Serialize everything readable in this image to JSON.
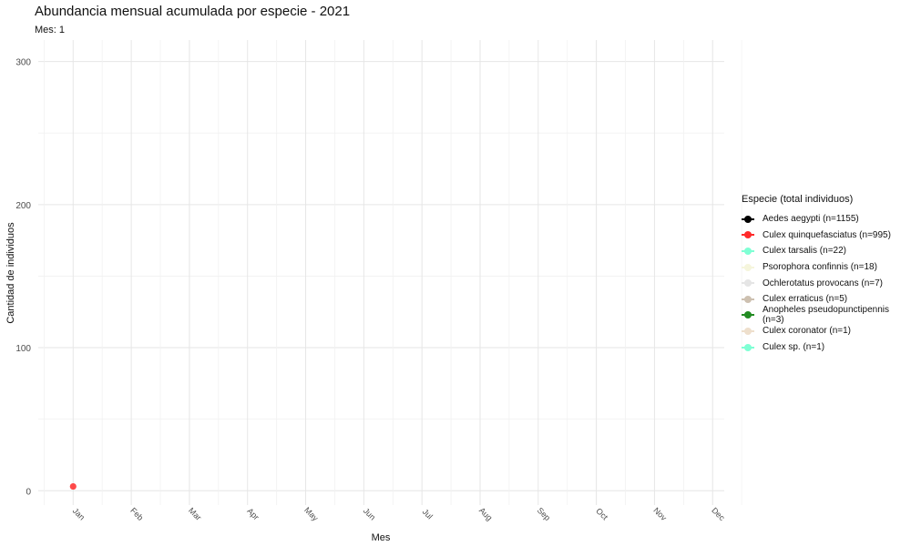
{
  "chart_data": {
    "type": "line",
    "title": "Abundancia mensual acumulada por especie - 2021",
    "subtitle": "Mes: 1",
    "xlabel": "Mes",
    "ylabel": "Cantidad de individuos",
    "categories": [
      "Jan",
      "Feb",
      "Mar",
      "Apr",
      "May",
      "Jun",
      "Jul",
      "Aug",
      "Sep",
      "Oct",
      "Nov",
      "Dec"
    ],
    "ylim": [
      -10,
      315
    ],
    "yticks": [
      0,
      100,
      200,
      300
    ],
    "grid": true,
    "legend_position": "right",
    "legend_title": "Especie (total individuos)",
    "series": [
      {
        "name": "Aedes aegypti (n=1155)",
        "color": "#000000",
        "values": [
          null,
          null,
          null,
          null,
          null,
          null,
          null,
          null,
          null,
          null,
          null,
          null
        ]
      },
      {
        "name": "Culex quinquefasciatus (n=995)",
        "color": "#ff2a2a",
        "values": [
          3,
          null,
          null,
          null,
          null,
          null,
          null,
          null,
          null,
          null,
          null,
          null
        ]
      },
      {
        "name": "Culex tarsalis (n=22)",
        "color": "#7fffd4",
        "values": [
          null,
          null,
          null,
          null,
          null,
          null,
          null,
          null,
          null,
          null,
          null,
          null
        ]
      },
      {
        "name": "Psorophora confinnis (n=18)",
        "color": "#f5f5dc",
        "values": [
          null,
          null,
          null,
          null,
          null,
          null,
          null,
          null,
          null,
          null,
          null,
          null
        ]
      },
      {
        "name": "Ochlerotatus provocans (n=7)",
        "color": "#e5e5e5",
        "values": [
          null,
          null,
          null,
          null,
          null,
          null,
          null,
          null,
          null,
          null,
          null,
          null
        ]
      },
      {
        "name": "Culex erraticus (n=5)",
        "color": "#cdc0b0",
        "values": [
          null,
          null,
          null,
          null,
          null,
          null,
          null,
          null,
          null,
          null,
          null,
          null
        ]
      },
      {
        "name": "Anopheles pseudopunctipennis (n=3)",
        "color": "#228b22",
        "values": [
          null,
          null,
          null,
          null,
          null,
          null,
          null,
          null,
          null,
          null,
          null,
          null
        ]
      },
      {
        "name": "Culex coronator (n=1)",
        "color": "#eedfcc",
        "values": [
          null,
          null,
          null,
          null,
          null,
          null,
          null,
          null,
          null,
          null,
          null,
          null
        ]
      },
      {
        "name": "Culex sp. (n=1)",
        "color": "#7fffd4",
        "values": [
          null,
          null,
          null,
          null,
          null,
          null,
          null,
          null,
          null,
          null,
          null,
          null
        ]
      }
    ]
  }
}
